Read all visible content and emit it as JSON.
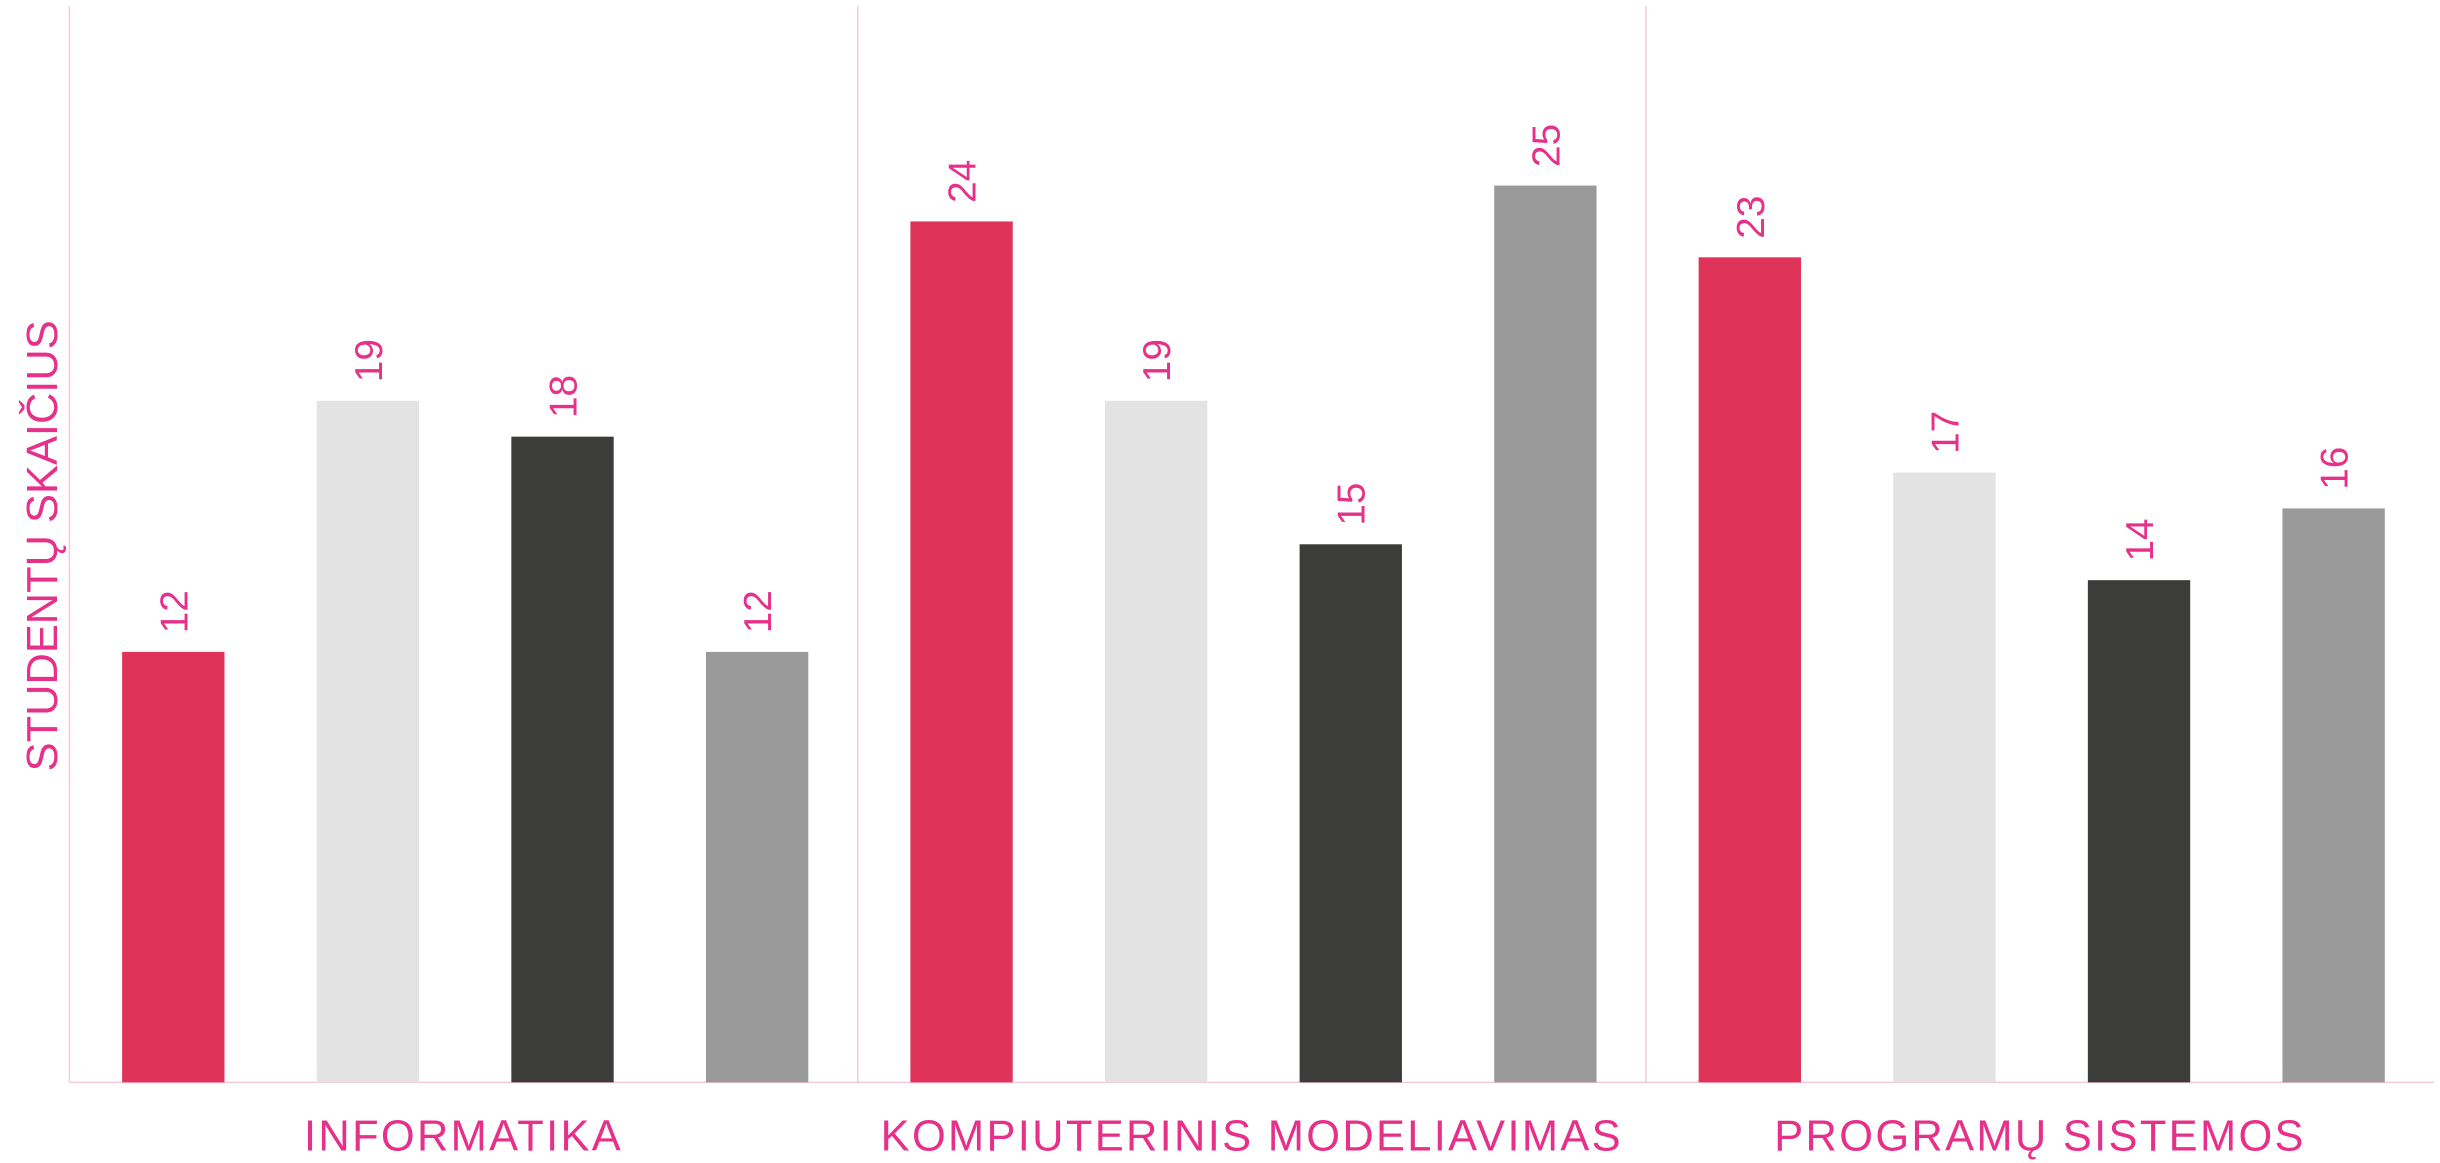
{
  "chart_data": {
    "type": "bar",
    "y_label": "STUDENTŲ SKAIČIUS",
    "categories": [
      "INFORMATIKA",
      "KOMPIUTERINIS MODELIAVIMAS",
      "PROGRAMŲ SISTEMOS"
    ],
    "series": [
      {
        "color": "#e0335a",
        "values": [
          12,
          24,
          23
        ]
      },
      {
        "color": "#e3e3e3",
        "values": [
          19,
          19,
          17
        ]
      },
      {
        "color": "#3c3c3b",
        "values": [
          18,
          15,
          14
        ]
      },
      {
        "color": "#9a9a9a",
        "values": [
          12,
          25,
          16
        ]
      }
    ],
    "ylim": [
      0,
      30
    ]
  }
}
